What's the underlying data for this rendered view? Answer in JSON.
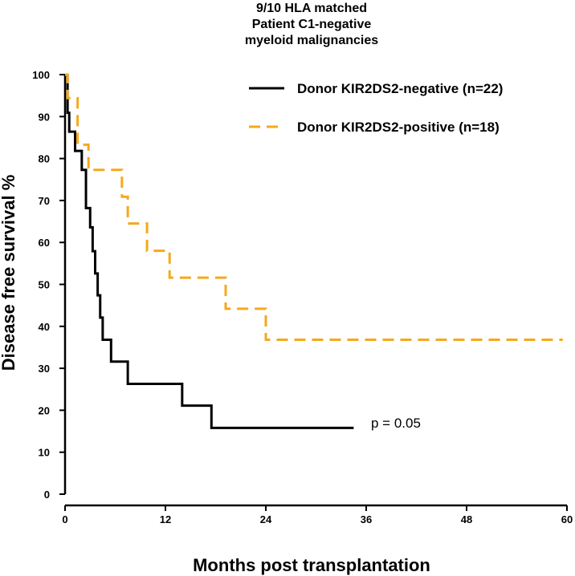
{
  "chart_data": {
    "type": "line",
    "title_lines": [
      "9/10 HLA matched",
      "Patient C1-negative",
      "myeloid malignancies"
    ],
    "xlabel": "Months post transplantation",
    "ylabel": "Disease free survival %",
    "xlim": [
      0,
      60
    ],
    "ylim": [
      0,
      100
    ],
    "xticks": [
      0,
      12,
      24,
      36,
      48,
      60
    ],
    "yticks": [
      0,
      10,
      20,
      30,
      40,
      50,
      60,
      70,
      80,
      90,
      100
    ],
    "grid": false,
    "legend_position": "top-right",
    "annotation": "p = 0.05",
    "series": [
      {
        "name": "Donor KIR2DS2-negative (n=22)",
        "color": "#000000",
        "style": "solid",
        "steps": [
          [
            0,
            100
          ],
          [
            0.3,
            90.9
          ],
          [
            0.5,
            86.4
          ],
          [
            1.2,
            81.8
          ],
          [
            2.0,
            77.3
          ],
          [
            2.5,
            68.2
          ],
          [
            3.0,
            63.6
          ],
          [
            3.3,
            57.9
          ],
          [
            3.6,
            52.6
          ],
          [
            3.9,
            47.4
          ],
          [
            4.2,
            42.1
          ],
          [
            4.5,
            36.8
          ],
          [
            5.5,
            31.6
          ],
          [
            7.5,
            26.3
          ],
          [
            14.0,
            21.1
          ],
          [
            17.5,
            15.8
          ],
          [
            34.5,
            15.8
          ]
        ]
      },
      {
        "name": "Donor KIR2DS2-positive (n=18)",
        "color": "#F5A81C",
        "style": "dashed",
        "steps": [
          [
            0,
            100
          ],
          [
            0.3,
            94.4
          ],
          [
            1.5,
            83.3
          ],
          [
            2.8,
            77.3
          ],
          [
            6.8,
            70.9
          ],
          [
            7.5,
            64.5
          ],
          [
            9.8,
            58.0
          ],
          [
            12.5,
            51.6
          ],
          [
            19.2,
            44.2
          ],
          [
            24.0,
            36.8
          ],
          [
            59.5,
            36.8
          ]
        ]
      }
    ]
  }
}
